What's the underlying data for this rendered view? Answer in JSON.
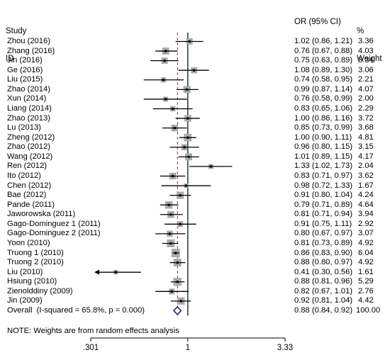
{
  "header": {
    "study_line1": "Study",
    "study_line2": "ID",
    "or_label": "OR (95% CI)",
    "weight_line1": "%",
    "weight_line2": "Weight"
  },
  "note": "NOTE: Weights are from random effects analysis",
  "colors": {
    "ci_line": "#000000",
    "box": "#aaaaaa",
    "ref_line": "#000000",
    "overall_line": "#c8102e",
    "diamond": "#1f2a6b"
  },
  "chart_data": {
    "type": "forest",
    "x_scale": "log",
    "ticks": [
      ".301",
      "1",
      "3.33"
    ],
    "tick_values": [
      0.301,
      1,
      3.33
    ],
    "xlim": [
      0.301,
      3.33
    ],
    "reference_line": 1,
    "studies": [
      {
        "id": "Zhou (2016)",
        "or": 1.02,
        "lo": 0.86,
        "hi": 1.21,
        "ci_text": "1.02 (0.86, 1.21)",
        "weight": "3.36",
        "w": 3.36
      },
      {
        "id": "Zhang (2016)",
        "or": 0.76,
        "lo": 0.67,
        "hi": 0.88,
        "ci_text": "0.76 (0.67, 0.88)",
        "weight": "4.03",
        "w": 4.03
      },
      {
        "id": "Jin (2016)",
        "or": 0.75,
        "lo": 0.63,
        "hi": 0.89,
        "ci_text": "0.75 (0.63, 0.89)",
        "weight": "3.34",
        "w": 3.34
      },
      {
        "id": "Ge (2016)",
        "or": 1.08,
        "lo": 0.89,
        "hi": 1.3,
        "ci_text": "1.08 (0.89, 1.30)",
        "weight": "3.06",
        "w": 3.06
      },
      {
        "id": "Liu (2015)",
        "or": 0.74,
        "lo": 0.58,
        "hi": 0.95,
        "ci_text": "0.74 (0.58, 0.95)",
        "weight": "2.21",
        "w": 2.21
      },
      {
        "id": "Zhao (2014)",
        "or": 0.99,
        "lo": 0.87,
        "hi": 1.14,
        "ci_text": "0.99 (0.87, 1.14)",
        "weight": "4.07",
        "w": 4.07
      },
      {
        "id": "Xun (2014)",
        "or": 0.76,
        "lo": 0.58,
        "hi": 0.99,
        "ci_text": "0.76 (0.58, 0.99)",
        "weight": "2.00",
        "w": 2.0
      },
      {
        "id": "Liang (2014)",
        "or": 0.83,
        "lo": 0.65,
        "hi": 1.06,
        "ci_text": "0.83 (0.65, 1.06)",
        "weight": "2.29",
        "w": 2.29
      },
      {
        "id": "Zhao (2013)",
        "or": 1.0,
        "lo": 0.86,
        "hi": 1.16,
        "ci_text": "1.00 (0.86, 1.16)",
        "weight": "3.72",
        "w": 3.72
      },
      {
        "id": "Lu (2013)",
        "or": 0.85,
        "lo": 0.73,
        "hi": 0.99,
        "ci_text": "0.85 (0.73, 0.99)",
        "weight": "3.68",
        "w": 3.68
      },
      {
        "id": "Zheng (2012)",
        "or": 1.0,
        "lo": 0.9,
        "hi": 1.11,
        "ci_text": "1.00 (0.90, 1.11)",
        "weight": "4.81",
        "w": 4.81
      },
      {
        "id": "Zhao (2012)",
        "or": 0.96,
        "lo": 0.8,
        "hi": 1.15,
        "ci_text": "0.96 (0.80, 1.15)",
        "weight": "3.15",
        "w": 3.15
      },
      {
        "id": "Wang (2012)",
        "or": 1.01,
        "lo": 0.89,
        "hi": 1.15,
        "ci_text": "1.01 (0.89, 1.15)",
        "weight": "4.17",
        "w": 4.17
      },
      {
        "id": "Ren (2012)",
        "or": 1.33,
        "lo": 1.02,
        "hi": 1.73,
        "ci_text": "1.33 (1.02, 1.73)",
        "weight": "2.04",
        "w": 2.04
      },
      {
        "id": "Ito (2012)",
        "or": 0.83,
        "lo": 0.71,
        "hi": 0.97,
        "ci_text": "0.83 (0.71, 0.97)",
        "weight": "3.62",
        "w": 3.62
      },
      {
        "id": "Chen (2012)",
        "or": 0.98,
        "lo": 0.72,
        "hi": 1.33,
        "ci_text": "0.98 (0.72, 1.33)",
        "weight": "1.67",
        "w": 1.67
      },
      {
        "id": "Bae (2012)",
        "or": 0.91,
        "lo": 0.8,
        "hi": 1.04,
        "ci_text": "0.91 (0.80, 1.04)",
        "weight": "4.24",
        "w": 4.24
      },
      {
        "id": "Pande (2011)",
        "or": 0.79,
        "lo": 0.71,
        "hi": 0.89,
        "ci_text": "0.79 (0.71, 0.89)",
        "weight": "4.64",
        "w": 4.64
      },
      {
        "id": "Jaworowska (2011)",
        "or": 0.81,
        "lo": 0.71,
        "hi": 0.94,
        "ci_text": "0.81 (0.71, 0.94)",
        "weight": "3.94",
        "w": 3.94
      },
      {
        "id": "Gago-Dominguez 1 (2011)",
        "or": 0.91,
        "lo": 0.75,
        "hi": 1.11,
        "ci_text": "0.91 (0.75, 1.11)",
        "weight": "2.92",
        "w": 2.92
      },
      {
        "id": "Gago-Dominguez 2 (2011)",
        "or": 0.8,
        "lo": 0.67,
        "hi": 0.97,
        "ci_text": "0.80 (0.67, 0.97)",
        "weight": "3.07",
        "w": 3.07
      },
      {
        "id": "Yoon (2010)",
        "or": 0.81,
        "lo": 0.73,
        "hi": 0.89,
        "ci_text": "0.81 (0.73, 0.89)",
        "weight": "4.92",
        "w": 4.92
      },
      {
        "id": "Truong 1 (2010)",
        "or": 0.86,
        "lo": 0.83,
        "hi": 0.9,
        "ci_text": "0.86 (0.83, 0.90)",
        "weight": "6.04",
        "w": 6.04
      },
      {
        "id": "Truong 2 (2010)",
        "or": 0.88,
        "lo": 0.8,
        "hi": 0.97,
        "ci_text": "0.88 (0.80, 0.97)",
        "weight": "4.92",
        "w": 4.92
      },
      {
        "id": "Liu (2010)",
        "or": 0.41,
        "lo": 0.3,
        "hi": 0.56,
        "ci_text": "0.41 (0.30, 0.56)",
        "weight": "1.61",
        "w": 1.61,
        "arrow_left": true
      },
      {
        "id": "Hsiung (2010)",
        "or": 0.88,
        "lo": 0.81,
        "hi": 0.96,
        "ci_text": "0.88 (0.81, 0.96)",
        "weight": "5.29",
        "w": 5.29
      },
      {
        "id": "Zienolddiny (2009)",
        "or": 0.82,
        "lo": 0.67,
        "hi": 1.01,
        "ci_text": "0.82 (0.67, 1.01)",
        "weight": "2.76",
        "w": 2.76
      },
      {
        "id": "Jin (2009)",
        "or": 0.92,
        "lo": 0.81,
        "hi": 1.04,
        "ci_text": "0.92 (0.81, 1.04)",
        "weight": "4.42",
        "w": 4.42
      }
    ],
    "overall": {
      "id": "Overall  (I-squared = 65.8%, p = 0.000)",
      "or": 0.88,
      "lo": 0.84,
      "hi": 0.92,
      "ci_text": "0.88 (0.84, 0.92)",
      "weight": "100.00"
    }
  }
}
